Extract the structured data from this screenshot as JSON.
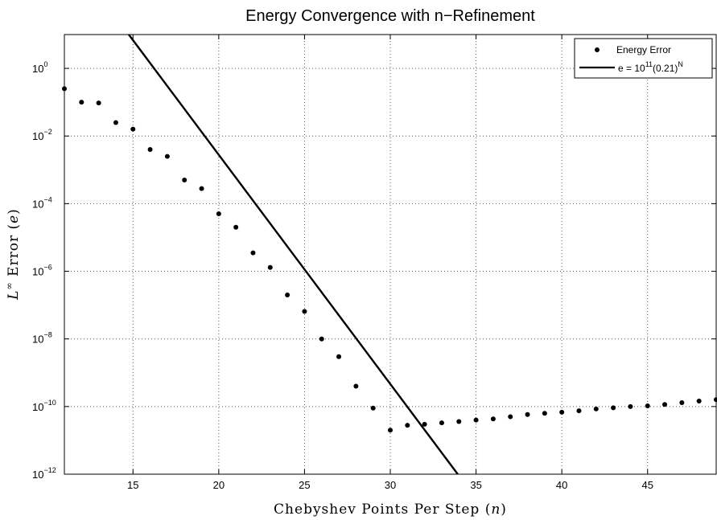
{
  "chart_data": {
    "type": "scatter",
    "title": "Energy Convergence with n−Refinement",
    "xlabel": {
      "text": "Chebyshev Points Per Step (",
      "var": "n",
      "close": ")"
    },
    "ylabel": {
      "base": "L",
      "sup": "∞",
      "text": " Error (",
      "var": "e",
      "close": ")"
    },
    "x_scale": "linear",
    "y_scale": "log",
    "xlim": [
      11,
      49
    ],
    "ylim": [
      1e-12,
      10
    ],
    "x_ticks": [
      15,
      20,
      25,
      30,
      35,
      40,
      45
    ],
    "y_ticks": [
      {
        "value": 1,
        "base": "10",
        "exp": "0"
      },
      {
        "value": 0.01,
        "base": "10",
        "exp": "−2"
      },
      {
        "value": 0.0001,
        "base": "10",
        "exp": "−4"
      },
      {
        "value": 1e-06,
        "base": "10",
        "exp": "−6"
      },
      {
        "value": 1e-08,
        "base": "10",
        "exp": "−8"
      },
      {
        "value": 1e-10,
        "base": "10",
        "exp": "−10"
      },
      {
        "value": 1e-12,
        "base": "10",
        "exp": "−12"
      }
    ],
    "grid": true,
    "legend_position": "top-right",
    "series": [
      {
        "name": "Energy Error",
        "kind": "markers",
        "color": "#000000",
        "points": [
          [
            11,
            0.25
          ],
          [
            12,
            0.1
          ],
          [
            13,
            0.095
          ],
          [
            14,
            0.025
          ],
          [
            15,
            0.016
          ],
          [
            16,
            0.004
          ],
          [
            17,
            0.0025
          ],
          [
            18,
            0.0005
          ],
          [
            19,
            0.00028
          ],
          [
            20,
            5e-05
          ],
          [
            21,
            2e-05
          ],
          [
            22,
            3.5e-06
          ],
          [
            23,
            1.3e-06
          ],
          [
            24,
            2e-07
          ],
          [
            25,
            6.5e-08
          ],
          [
            26,
            1e-08
          ],
          [
            27,
            3e-09
          ],
          [
            28,
            4e-10
          ],
          [
            29,
            9e-11
          ],
          [
            30,
            2e-11
          ],
          [
            31,
            2.8e-11
          ],
          [
            32,
            3e-11
          ],
          [
            33,
            3.3e-11
          ],
          [
            34,
            3.6e-11
          ],
          [
            35,
            4e-11
          ],
          [
            36,
            4.3e-11
          ],
          [
            37,
            5e-11
          ],
          [
            38,
            5.8e-11
          ],
          [
            39,
            6.3e-11
          ],
          [
            40,
            6.8e-11
          ],
          [
            41,
            7.5e-11
          ],
          [
            42,
            8.5e-11
          ],
          [
            43,
            9.2e-11
          ],
          [
            44,
            1e-10
          ],
          [
            45,
            1.05e-10
          ],
          [
            46,
            1.15e-10
          ],
          [
            47,
            1.3e-10
          ],
          [
            48,
            1.45e-10
          ],
          [
            49,
            1.6e-10
          ]
        ]
      },
      {
        "name": "e = 10^11(0.21)^N",
        "legend_parts": {
          "prefix": "e = 10",
          "exp1": "11",
          "mid": "(0.21)",
          "exp2": "N"
        },
        "kind": "line",
        "color": "#000000",
        "formula": {
          "coefficient": 100000000000.0,
          "base": 0.21
        }
      }
    ]
  }
}
